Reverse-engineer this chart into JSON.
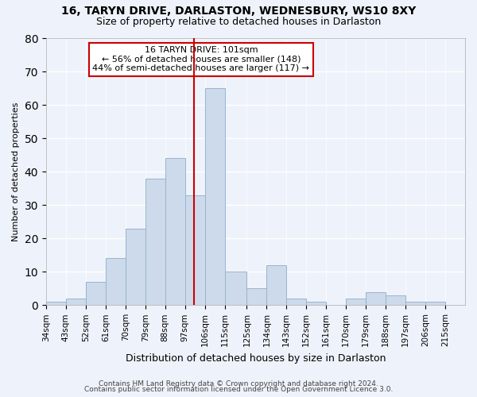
{
  "title1": "16, TARYN DRIVE, DARLASTON, WEDNESBURY, WS10 8XY",
  "title2": "Size of property relative to detached houses in Darlaston",
  "xlabel": "Distribution of detached houses by size in Darlaston",
  "ylabel": "Number of detached properties",
  "bin_labels": [
    "34sqm",
    "43sqm",
    "52sqm",
    "61sqm",
    "70sqm",
    "79sqm",
    "88sqm",
    "97sqm",
    "106sqm",
    "115sqm",
    "125sqm",
    "134sqm",
    "143sqm",
    "152sqm",
    "161sqm",
    "170sqm",
    "179sqm",
    "188sqm",
    "197sqm",
    "206sqm",
    "215sqm"
  ],
  "bin_edges": [
    34,
    43,
    52,
    61,
    70,
    79,
    88,
    97,
    106,
    115,
    125,
    134,
    143,
    152,
    161,
    170,
    179,
    188,
    197,
    206,
    215,
    224
  ],
  "values": [
    1,
    2,
    7,
    14,
    23,
    38,
    44,
    33,
    65,
    10,
    5,
    12,
    2,
    1,
    0,
    2,
    4,
    3,
    1,
    1,
    0
  ],
  "bar_color": "#ccdaeb",
  "bar_edge_color": "#9ab4cc",
  "vline_x": 101,
  "vline_color": "#cc0000",
  "annotation_text": "16 TARYN DRIVE: 101sqm\n← 56% of detached houses are smaller (148)\n44% of semi-detached houses are larger (117) →",
  "annotation_box_color": "white",
  "annotation_box_edge_color": "#cc0000",
  "footer1": "Contains HM Land Registry data © Crown copyright and database right 2024.",
  "footer2": "Contains public sector information licensed under the Open Government Licence 3.0.",
  "ylim": [
    0,
    80
  ],
  "background_color": "#eef2fa",
  "grid_color": "white",
  "title1_fontsize": 10,
  "title2_fontsize": 9,
  "xlabel_fontsize": 9,
  "ylabel_fontsize": 8,
  "tick_fontsize": 7.5,
  "annotation_fontsize": 8,
  "footer_fontsize": 6.5
}
